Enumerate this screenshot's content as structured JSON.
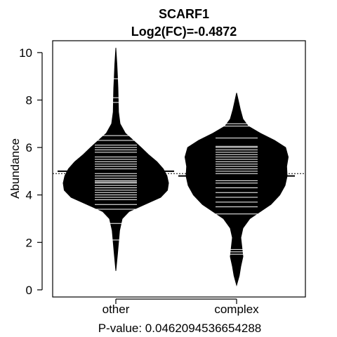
{
  "chart_data": {
    "type": "beanplot",
    "title": "SCARF1",
    "subtitle": "Log2(FC)=-0.4872",
    "ylabel": "Abundance",
    "xlabel": "P-value: 0.0462094536654288",
    "categories": [
      "other",
      "complex"
    ],
    "ylim": [
      -0.3,
      10.5
    ],
    "yticks": [
      0,
      2,
      4,
      6,
      8,
      10
    ],
    "overall_mean": 4.9,
    "groups": [
      {
        "name": "other",
        "mean": 5.0,
        "min": 0.8,
        "max": 10.2,
        "density": [
          [
            0.8,
            0.0
          ],
          [
            1.5,
            0.03
          ],
          [
            2.0,
            0.05
          ],
          [
            2.5,
            0.07
          ],
          [
            3.0,
            0.12
          ],
          [
            3.3,
            0.25
          ],
          [
            3.6,
            0.55
          ],
          [
            3.9,
            0.85
          ],
          [
            4.2,
            0.98
          ],
          [
            4.5,
            1.0
          ],
          [
            4.8,
            0.97
          ],
          [
            5.1,
            0.9
          ],
          [
            5.4,
            0.78
          ],
          [
            5.7,
            0.62
          ],
          [
            6.0,
            0.48
          ],
          [
            6.3,
            0.33
          ],
          [
            6.6,
            0.18
          ],
          [
            7.0,
            0.08
          ],
          [
            7.5,
            0.05
          ],
          [
            8.0,
            0.045
          ],
          [
            8.5,
            0.04
          ],
          [
            9.0,
            0.03
          ],
          [
            9.5,
            0.02
          ],
          [
            10.2,
            0.0
          ]
        ],
        "values": [
          2.1,
          2.8,
          3.4,
          3.6,
          3.8,
          3.9,
          4.0,
          4.1,
          4.2,
          4.3,
          4.4,
          4.5,
          4.55,
          4.6,
          4.7,
          4.8,
          4.9,
          5.0,
          5.1,
          5.2,
          5.3,
          5.4,
          5.5,
          5.6,
          5.8,
          5.9,
          6.0,
          6.1,
          6.3,
          6.5,
          7.9,
          8.1,
          8.9
        ]
      },
      {
        "name": "complex",
        "mean": 4.8,
        "min": 0.2,
        "max": 8.3,
        "density": [
          [
            0.2,
            0.0
          ],
          [
            0.6,
            0.05
          ],
          [
            1.0,
            0.08
          ],
          [
            1.4,
            0.12
          ],
          [
            1.8,
            0.1
          ],
          [
            2.2,
            0.08
          ],
          [
            2.6,
            0.12
          ],
          [
            3.0,
            0.25
          ],
          [
            3.3,
            0.45
          ],
          [
            3.6,
            0.65
          ],
          [
            4.0,
            0.82
          ],
          [
            4.4,
            0.92
          ],
          [
            4.8,
            0.96
          ],
          [
            5.2,
            0.95
          ],
          [
            5.6,
            0.98
          ],
          [
            6.0,
            0.93
          ],
          [
            6.3,
            0.72
          ],
          [
            6.6,
            0.45
          ],
          [
            6.9,
            0.22
          ],
          [
            7.2,
            0.12
          ],
          [
            7.6,
            0.07
          ],
          [
            8.0,
            0.03
          ],
          [
            8.3,
            0.0
          ]
        ],
        "values": [
          1.5,
          1.6,
          1.7,
          3.2,
          3.5,
          3.7,
          3.9,
          4.1,
          4.3,
          4.5,
          4.6,
          4.8,
          4.9,
          5.0,
          5.1,
          5.2,
          5.3,
          5.4,
          5.5,
          5.6,
          5.7,
          5.8,
          5.9,
          6.0,
          6.05,
          6.4,
          6.9,
          7.0
        ]
      }
    ],
    "colors": {
      "bean": "#000000",
      "line": "#ffffff",
      "background": "#ffffff"
    }
  }
}
